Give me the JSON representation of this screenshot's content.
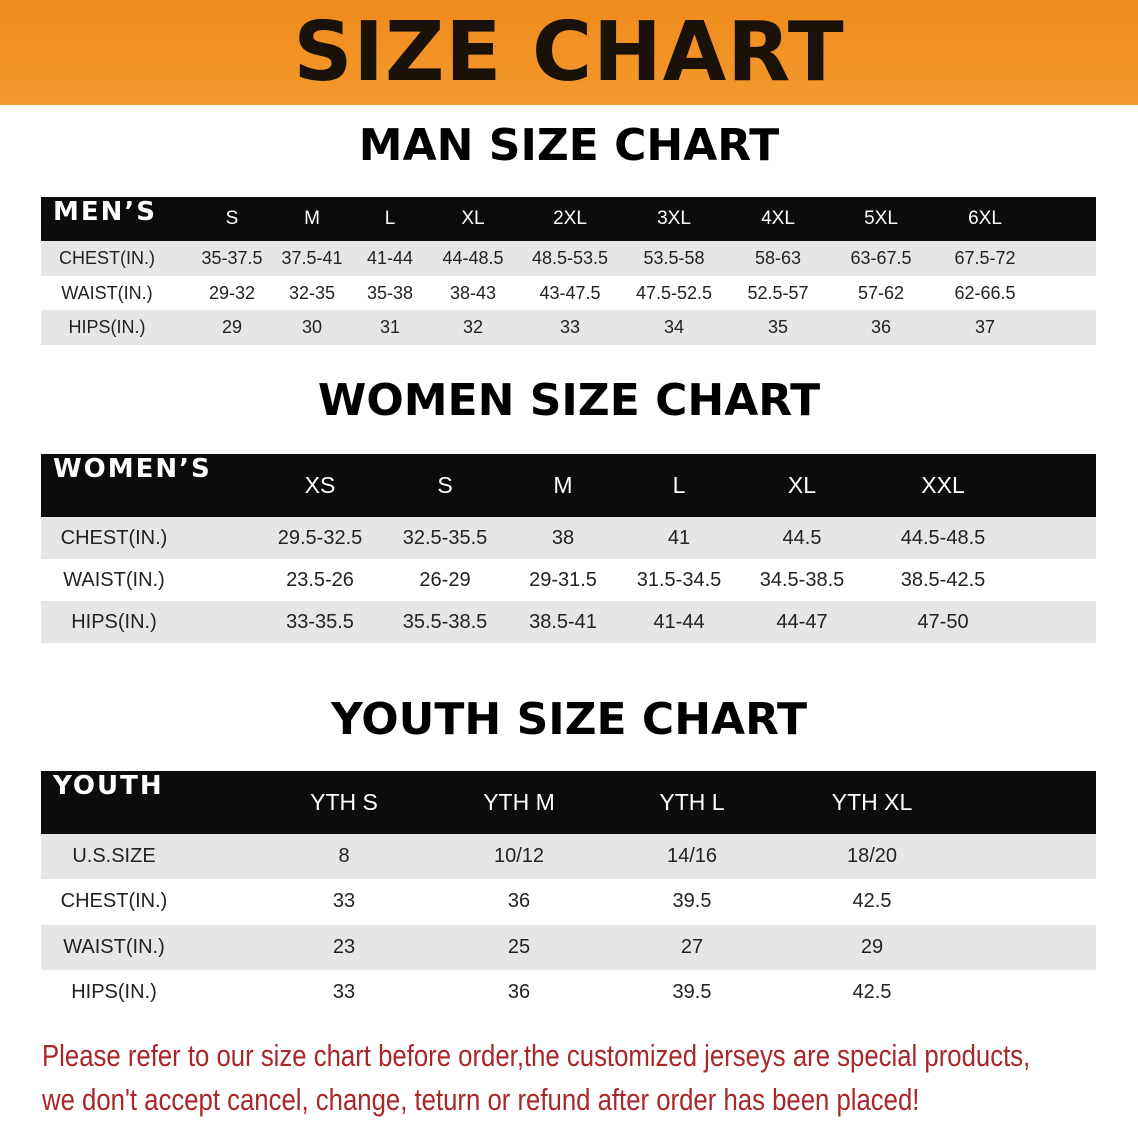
{
  "header": {
    "title": "SIZE CHART"
  },
  "tables": [
    {
      "title": "MAN SIZE CHART",
      "columns": [
        "MEN’S",
        "S",
        "M",
        "L",
        "XL",
        "2XL",
        "3XL",
        "4XL",
        "5XL",
        "6XL"
      ],
      "rows": [
        [
          "CHEST(IN.)",
          "35-37.5",
          "37.5-41",
          "41-44",
          "44-48.5",
          "48.5-53.5",
          "53.5-58",
          "58-63",
          "63-67.5",
          "67.5-72"
        ],
        [
          "WAIST(IN.)",
          "29-32",
          "32-35",
          "35-38",
          "38-43",
          "43-47.5",
          "47.5-52.5",
          "52.5-57",
          "57-62",
          "62-66.5"
        ],
        [
          "HIPS(IN.)",
          "29",
          "30",
          "31",
          "32",
          "33",
          "34",
          "35",
          "36",
          "37"
        ]
      ]
    },
    {
      "title": "WOMEN SIZE CHART",
      "columns": [
        "WOMEN’S",
        "XS",
        "S",
        "M",
        "L",
        "XL",
        "XXL"
      ],
      "rows": [
        [
          "CHEST(IN.)",
          "29.5-32.5",
          "32.5-35.5",
          "38",
          "41",
          "44.5",
          "44.5-48.5"
        ],
        [
          "WAIST(IN.)",
          "23.5-26",
          "26-29",
          "29-31.5",
          "31.5-34.5",
          "34.5-38.5",
          "38.5-42.5"
        ],
        [
          "HIPS(IN.)",
          "33-35.5",
          "35.5-38.5",
          "38.5-41",
          "41-44",
          "44-47",
          "47-50"
        ]
      ]
    },
    {
      "title": "YOUTH SIZE CHART",
      "columns": [
        "YOUTH",
        "YTH S",
        "YTH M",
        "YTH L",
        "YTH XL"
      ],
      "rows": [
        [
          "U.S.SIZE",
          "8",
          "10/12",
          "14/16",
          "18/20"
        ],
        [
          "CHEST(IN.)",
          "33",
          "36",
          "39.5",
          "42.5"
        ],
        [
          "WAIST(IN.)",
          "23",
          "25",
          "27",
          "29"
        ],
        [
          "HIPS(IN.)",
          "33",
          "36",
          "39.5",
          "42.5"
        ]
      ]
    }
  ],
  "note": [
    "Please refer to our size chart before order,the customized jerseys are special products,",
    "we don't accept cancel, change, teturn or refund after order has been placed!"
  ]
}
